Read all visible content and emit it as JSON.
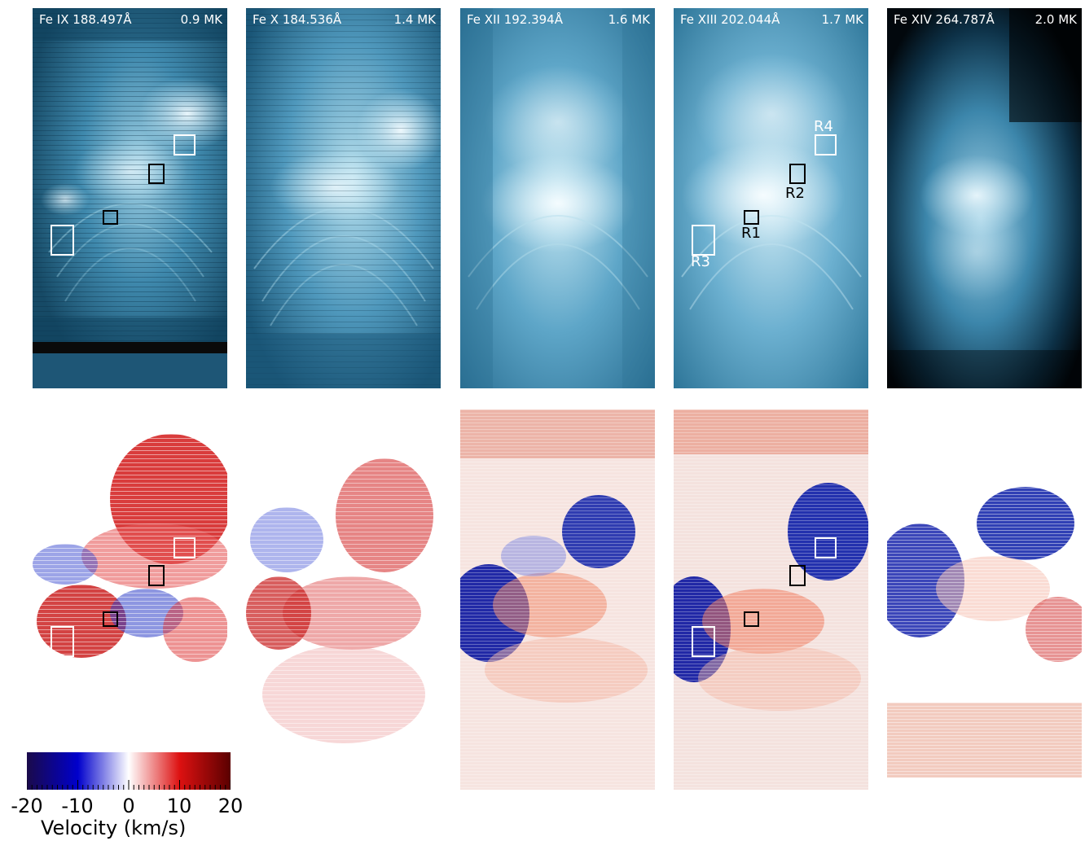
{
  "intensity_panels": [
    {
      "ion": "Fe IX 188.497Å",
      "temp": "0.9 MK"
    },
    {
      "ion": "Fe X 184.536Å",
      "temp": "1.4 MK"
    },
    {
      "ion": "Fe XII 192.394Å",
      "temp": "1.6 MK"
    },
    {
      "ion": "Fe XIII 202.044Å",
      "temp": "1.7 MK"
    },
    {
      "ion": "Fe XIV 264.787Å",
      "temp": "2.0 MK"
    }
  ],
  "region_labels": {
    "r1": "R1",
    "r2": "R2",
    "r3": "R3",
    "r4": "R4"
  },
  "colorbar": {
    "ticks": [
      "-20",
      "-10",
      "0",
      "10",
      "20"
    ],
    "title": "Velocity (km/s)",
    "range": [
      -20,
      20
    ],
    "colors": [
      "#1a0a4a",
      "#0000cc",
      "#ffffff",
      "#dd1111",
      "#5a0000"
    ]
  },
  "colors": {
    "intensity_dark": "#0e3f5c",
    "intensity_bright": "#e8f6fb",
    "redshift": "#cc1111",
    "blueshift": "#0a1ab0"
  }
}
